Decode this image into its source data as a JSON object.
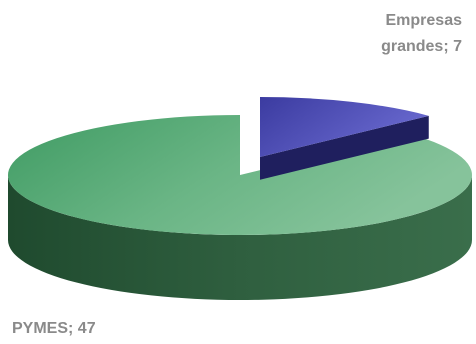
{
  "chart_data": {
    "type": "pie",
    "style": "3d-exploded",
    "slices": [
      {
        "label": "Empresas grandes",
        "value": 7,
        "color": "#4a4aa8"
      },
      {
        "label": "PYMES",
        "value": 47,
        "color": "#6fae86"
      }
    ],
    "separator": ";",
    "colors": {
      "empresas_top": "#5b5bc0",
      "empresas_side": "#1f1f5e",
      "pymes_top": "#6fb38a",
      "pymes_side": "#2e5c3e",
      "label_text": "#8a8a8a"
    }
  },
  "labels": {
    "empresas_line1": "Empresas",
    "empresas_line2": "grandes; 7",
    "pymes": "PYMES; 47"
  }
}
